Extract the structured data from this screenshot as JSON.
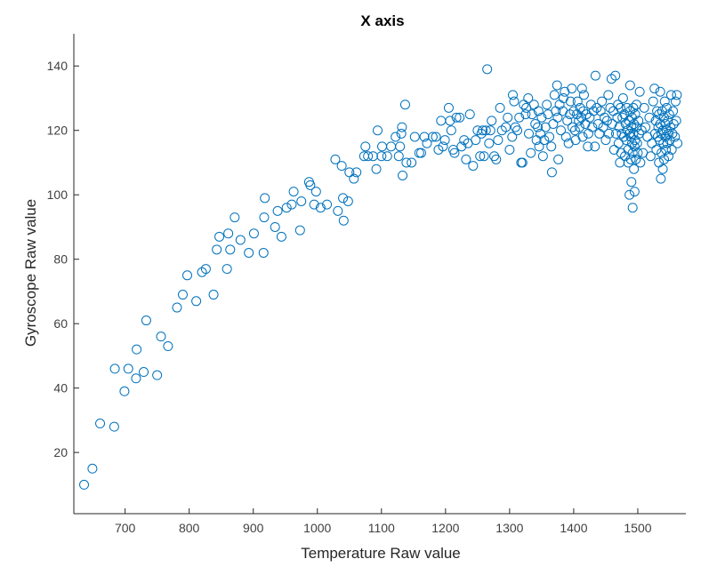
{
  "chart_data": {
    "type": "scatter",
    "title": "X axis",
    "xlabel": "Temperature Raw value",
    "ylabel": "Gyroscope Raw value",
    "xlim": [
      620,
      1575
    ],
    "ylim": [
      1,
      150
    ],
    "xticks": [
      700,
      800,
      900,
      1000,
      1100,
      1200,
      1300,
      1400,
      1500
    ],
    "yticks": [
      20,
      40,
      60,
      80,
      100,
      120,
      140
    ],
    "grid": false,
    "marker": "circle-open",
    "marker_color": "#0072BD",
    "points": [
      [
        636,
        10
      ],
      [
        649,
        15
      ],
      [
        661,
        29
      ],
      [
        683,
        28
      ],
      [
        684,
        46
      ],
      [
        699,
        39
      ],
      [
        705,
        46
      ],
      [
        717,
        43
      ],
      [
        718,
        52
      ],
      [
        729,
        45
      ],
      [
        733,
        61
      ],
      [
        750,
        44
      ],
      [
        756,
        56
      ],
      [
        767,
        53
      ],
      [
        781,
        65
      ],
      [
        790,
        69
      ],
      [
        797,
        75
      ],
      [
        811,
        67
      ],
      [
        820,
        76
      ],
      [
        826,
        77
      ],
      [
        838,
        69
      ],
      [
        843,
        83
      ],
      [
        847,
        87
      ],
      [
        859,
        77
      ],
      [
        861,
        88
      ],
      [
        864,
        83
      ],
      [
        871,
        93
      ],
      [
        880,
        86
      ],
      [
        893,
        82
      ],
      [
        901,
        88
      ],
      [
        916,
        82
      ],
      [
        917,
        93
      ],
      [
        918,
        99
      ],
      [
        934,
        90
      ],
      [
        938,
        95
      ],
      [
        944,
        87
      ],
      [
        952,
        96
      ],
      [
        960,
        97
      ],
      [
        963,
        101
      ],
      [
        973,
        89
      ],
      [
        975,
        98
      ],
      [
        987,
        104
      ],
      [
        989,
        103
      ],
      [
        995,
        97
      ],
      [
        998,
        101
      ],
      [
        1005,
        96
      ],
      [
        1015,
        97
      ],
      [
        1028,
        111
      ],
      [
        1032,
        95
      ],
      [
        1038,
        109
      ],
      [
        1040,
        99
      ],
      [
        1041,
        92
      ],
      [
        1048,
        98
      ],
      [
        1050,
        107
      ],
      [
        1057,
        105
      ],
      [
        1061,
        107
      ],
      [
        1073,
        112
      ],
      [
        1075,
        115
      ],
      [
        1079,
        112
      ],
      [
        1087,
        112
      ],
      [
        1092,
        108
      ],
      [
        1094,
        120
      ],
      [
        1100,
        112
      ],
      [
        1101,
        115
      ],
      [
        1109,
        112
      ],
      [
        1115,
        115
      ],
      [
        1122,
        118
      ],
      [
        1127,
        112
      ],
      [
        1129,
        115
      ],
      [
        1131,
        119
      ],
      [
        1132,
        121
      ],
      [
        1133,
        106
      ],
      [
        1137,
        128
      ],
      [
        1139,
        110
      ],
      [
        1147,
        110
      ],
      [
        1152,
        118
      ],
      [
        1159,
        113
      ],
      [
        1162,
        113
      ],
      [
        1167,
        118
      ],
      [
        1171,
        116
      ],
      [
        1180,
        118
      ],
      [
        1185,
        118
      ],
      [
        1189,
        114
      ],
      [
        1193,
        123
      ],
      [
        1196,
        115
      ],
      [
        1199,
        117
      ],
      [
        1205,
        127
      ],
      [
        1207,
        123
      ],
      [
        1209,
        120
      ],
      [
        1212,
        114
      ],
      [
        1214,
        113
      ],
      [
        1217,
        124
      ],
      [
        1222,
        124
      ],
      [
        1225,
        115
      ],
      [
        1229,
        117
      ],
      [
        1232,
        111
      ],
      [
        1235,
        116
      ],
      [
        1238,
        125
      ],
      [
        1243,
        109
      ],
      [
        1247,
        117
      ],
      [
        1250,
        120
      ],
      [
        1254,
        112
      ],
      [
        1256,
        119
      ],
      [
        1258,
        120
      ],
      [
        1260,
        112
      ],
      [
        1263,
        120
      ],
      [
        1265,
        139
      ],
      [
        1268,
        116
      ],
      [
        1270,
        120
      ],
      [
        1272,
        123
      ],
      [
        1276,
        112
      ],
      [
        1279,
        111
      ],
      [
        1282,
        117
      ],
      [
        1285,
        127
      ],
      [
        1288,
        120
      ],
      [
        1294,
        121
      ],
      [
        1297,
        124
      ],
      [
        1300,
        114
      ],
      [
        1304,
        118
      ],
      [
        1305,
        131
      ],
      [
        1307,
        129
      ],
      [
        1309,
        121
      ],
      [
        1312,
        120
      ],
      [
        1315,
        124
      ],
      [
        1318,
        110
      ],
      [
        1320,
        110
      ],
      [
        1322,
        128
      ],
      [
        1325,
        125
      ],
      [
        1326,
        127
      ],
      [
        1329,
        130
      ],
      [
        1330,
        119
      ],
      [
        1333,
        113
      ],
      [
        1335,
        125
      ],
      [
        1338,
        128
      ],
      [
        1340,
        122
      ],
      [
        1342,
        117
      ],
      [
        1344,
        121
      ],
      [
        1345,
        126
      ],
      [
        1346,
        115
      ],
      [
        1348,
        119
      ],
      [
        1350,
        124
      ],
      [
        1352,
        112
      ],
      [
        1354,
        117
      ],
      [
        1356,
        121
      ],
      [
        1358,
        128
      ],
      [
        1360,
        125
      ],
      [
        1362,
        118
      ],
      [
        1365,
        115
      ],
      [
        1366,
        107
      ],
      [
        1368,
        122
      ],
      [
        1370,
        131
      ],
      [
        1372,
        126
      ],
      [
        1374,
        134
      ],
      [
        1375,
        124
      ],
      [
        1376,
        111
      ],
      [
        1378,
        128
      ],
      [
        1380,
        120
      ],
      [
        1383,
        126
      ],
      [
        1384,
        130
      ],
      [
        1386,
        132
      ],
      [
        1388,
        118
      ],
      [
        1390,
        123
      ],
      [
        1392,
        116
      ],
      [
        1394,
        125
      ],
      [
        1395,
        129
      ],
      [
        1397,
        133
      ],
      [
        1398,
        121
      ],
      [
        1400,
        126
      ],
      [
        1402,
        120
      ],
      [
        1403,
        117
      ],
      [
        1405,
        125
      ],
      [
        1406,
        129
      ],
      [
        1408,
        123
      ],
      [
        1409,
        121
      ],
      [
        1410,
        127
      ],
      [
        1412,
        124
      ],
      [
        1413,
        133
      ],
      [
        1414,
        118
      ],
      [
        1415,
        126
      ],
      [
        1416,
        131
      ],
      [
        1418,
        122
      ],
      [
        1420,
        125
      ],
      [
        1422,
        115
      ],
      [
        1423,
        119
      ],
      [
        1425,
        124
      ],
      [
        1427,
        128
      ],
      [
        1429,
        121
      ],
      [
        1431,
        126
      ],
      [
        1433,
        115
      ],
      [
        1434,
        137
      ],
      [
        1436,
        127
      ],
      [
        1438,
        122
      ],
      [
        1440,
        119
      ],
      [
        1442,
        126
      ],
      [
        1444,
        129
      ],
      [
        1446,
        121
      ],
      [
        1448,
        124
      ],
      [
        1450,
        117
      ],
      [
        1452,
        123
      ],
      [
        1454,
        131
      ],
      [
        1455,
        119
      ],
      [
        1457,
        127
      ],
      [
        1459,
        136
      ],
      [
        1460,
        122
      ],
      [
        1462,
        126
      ],
      [
        1463,
        114
      ],
      [
        1465,
        137
      ],
      [
        1466,
        119
      ],
      [
        1468,
        124
      ],
      [
        1469,
        128
      ],
      [
        1470,
        116
      ],
      [
        1471,
        121
      ],
      [
        1472,
        110
      ],
      [
        1473,
        127
      ],
      [
        1474,
        113
      ],
      [
        1475,
        119
      ],
      [
        1476,
        124
      ],
      [
        1477,
        130
      ],
      [
        1478,
        118
      ],
      [
        1479,
        125
      ],
      [
        1480,
        112
      ],
      [
        1481,
        122
      ],
      [
        1482,
        117
      ],
      [
        1483,
        127
      ],
      [
        1484,
        120
      ],
      [
        1485,
        110
      ],
      [
        1485,
        114
      ],
      [
        1486,
        123
      ],
      [
        1487,
        119
      ],
      [
        1487,
        100
      ],
      [
        1488,
        134
      ],
      [
        1488,
        126
      ],
      [
        1489,
        111
      ],
      [
        1489,
        118
      ],
      [
        1490,
        121
      ],
      [
        1490,
        104
      ],
      [
        1491,
        116
      ],
      [
        1491,
        124
      ],
      [
        1492,
        96
      ],
      [
        1492,
        113
      ],
      [
        1493,
        127
      ],
      [
        1493,
        119
      ],
      [
        1494,
        108
      ],
      [
        1494,
        122
      ],
      [
        1495,
        101
      ],
      [
        1495,
        115
      ],
      [
        1496,
        125
      ],
      [
        1496,
        117
      ],
      [
        1497,
        111
      ],
      [
        1498,
        121
      ],
      [
        1498,
        128
      ],
      [
        1499,
        116
      ],
      [
        1500,
        113
      ],
      [
        1501,
        123
      ],
      [
        1502,
        119
      ],
      [
        1503,
        132
      ],
      [
        1504,
        110
      ],
      [
        1506,
        120
      ],
      [
        1508,
        113
      ],
      [
        1510,
        127
      ],
      [
        1512,
        121
      ],
      [
        1515,
        118
      ],
      [
        1518,
        124
      ],
      [
        1520,
        112
      ],
      [
        1522,
        116
      ],
      [
        1524,
        129
      ],
      [
        1526,
        133
      ],
      [
        1527,
        119
      ],
      [
        1528,
        123
      ],
      [
        1529,
        114
      ],
      [
        1530,
        126
      ],
      [
        1531,
        118
      ],
      [
        1532,
        121
      ],
      [
        1533,
        110
      ],
      [
        1533,
        125
      ],
      [
        1534,
        117
      ],
      [
        1535,
        132
      ],
      [
        1535,
        122
      ],
      [
        1536,
        105
      ],
      [
        1537,
        119
      ],
      [
        1537,
        113
      ],
      [
        1538,
        126
      ],
      [
        1539,
        108
      ],
      [
        1539,
        120
      ],
      [
        1540,
        116
      ],
      [
        1541,
        124
      ],
      [
        1541,
        111
      ],
      [
        1542,
        129
      ],
      [
        1543,
        118
      ],
      [
        1543,
        122
      ],
      [
        1544,
        114
      ],
      [
        1545,
        127
      ],
      [
        1545,
        120
      ],
      [
        1546,
        116
      ],
      [
        1547,
        123
      ],
      [
        1548,
        112
      ],
      [
        1548,
        119
      ],
      [
        1549,
        125
      ],
      [
        1550,
        117
      ],
      [
        1551,
        121
      ],
      [
        1552,
        131
      ],
      [
        1553,
        114
      ],
      [
        1554,
        119
      ],
      [
        1555,
        126
      ],
      [
        1556,
        122
      ],
      [
        1558,
        118
      ],
      [
        1559,
        129
      ],
      [
        1560,
        123
      ],
      [
        1561,
        131
      ],
      [
        1562,
        116
      ]
    ]
  }
}
